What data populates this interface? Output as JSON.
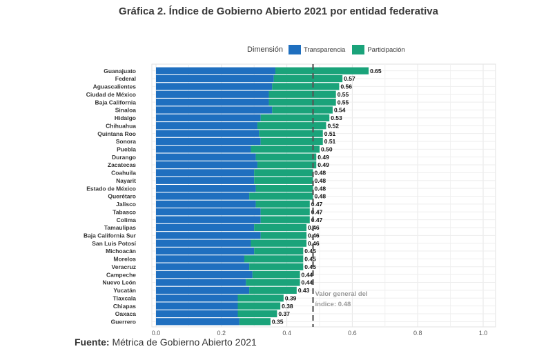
{
  "page": {
    "title": "Gráfica 2. Índice de Gobierno Abierto 2021 por entidad federativa",
    "source_label": "Fuente:",
    "source_text": "Métrica de Gobierno Abierto 2021"
  },
  "chart_data": {
    "type": "bar",
    "orientation": "horizontal",
    "stacked": true,
    "title": "Gráfica 2. Índice de Gobierno Abierto 2021 por entidad federativa",
    "legend_title": "Dimensión",
    "legend_position": "top",
    "grid": true,
    "xlim": [
      0,
      1.0
    ],
    "xticks": [
      "0.0",
      "0.2",
      "0.4",
      "0.6",
      "0.8",
      "1.0"
    ],
    "categories": [
      "Guanajuato",
      "Federal",
      "Aguascalientes",
      "Ciudad de México",
      "Baja California",
      "Sinaloa",
      "Hidalgo",
      "Chihuahua",
      "Quintana Roo",
      "Sonora",
      "Puebla",
      "Durango",
      "Zacatecas",
      "Coahuila",
      "Nayarit",
      "Estado de México",
      "Querétaro",
      "Jalisco",
      "Tabasco",
      "Colima",
      "Tamaulipas",
      "Baja California Sur",
      "San Luis Potosí",
      "Michoacán",
      "Morelos",
      "Veracruz",
      "Campeche",
      "Nuevo León",
      "Yucatán",
      "Tlaxcala",
      "Chiapas",
      "Oaxaca",
      "Guerrero"
    ],
    "series": [
      {
        "name": "Transparencia",
        "color": "#1f6fbf",
        "values": [
          0.365,
          0.36,
          0.355,
          0.345,
          0.345,
          0.355,
          0.32,
          0.31,
          0.315,
          0.32,
          0.29,
          0.305,
          0.31,
          0.3,
          0.3,
          0.305,
          0.285,
          0.305,
          0.32,
          0.32,
          0.3,
          0.32,
          0.29,
          0.3,
          0.27,
          0.285,
          0.295,
          0.275,
          0.285,
          0.25,
          0.25,
          0.25,
          0.255
        ]
      },
      {
        "name": "Participación",
        "color": "#1aa37a",
        "values": [
          0.285,
          0.21,
          0.205,
          0.205,
          0.205,
          0.185,
          0.21,
          0.21,
          0.195,
          0.19,
          0.21,
          0.185,
          0.18,
          0.18,
          0.18,
          0.175,
          0.195,
          0.165,
          0.15,
          0.15,
          0.16,
          0.14,
          0.17,
          0.15,
          0.18,
          0.165,
          0.145,
          0.165,
          0.145,
          0.14,
          0.13,
          0.12,
          0.095
        ]
      }
    ],
    "totals": [
      0.65,
      0.57,
      0.56,
      0.55,
      0.55,
      0.54,
      0.53,
      0.52,
      0.51,
      0.51,
      0.5,
      0.49,
      0.49,
      0.48,
      0.48,
      0.48,
      0.48,
      0.47,
      0.47,
      0.47,
      0.46,
      0.46,
      0.46,
      0.45,
      0.45,
      0.45,
      0.44,
      0.44,
      0.43,
      0.39,
      0.38,
      0.37,
      0.35
    ],
    "total_labels": [
      "0.65",
      "0.57",
      "0.56",
      "0.55",
      "0.55",
      "0.54",
      "0.53",
      "0.52",
      "0.51",
      "0.51",
      "0.50",
      "0.49",
      "0.49",
      "0.48",
      "0.48",
      "0.48",
      "0.48",
      "0.47",
      "0.47",
      "0.47",
      "0.46",
      "0.46",
      "0.46",
      "0.45",
      "0.45",
      "0.45",
      "0.44",
      "0.44",
      "0.43",
      "0.39",
      "0.38",
      "0.37",
      "0.35"
    ],
    "reference_line": {
      "value": 0.48,
      "label_line1": "Valor general del",
      "label_line2": "índice: 0.48"
    }
  }
}
